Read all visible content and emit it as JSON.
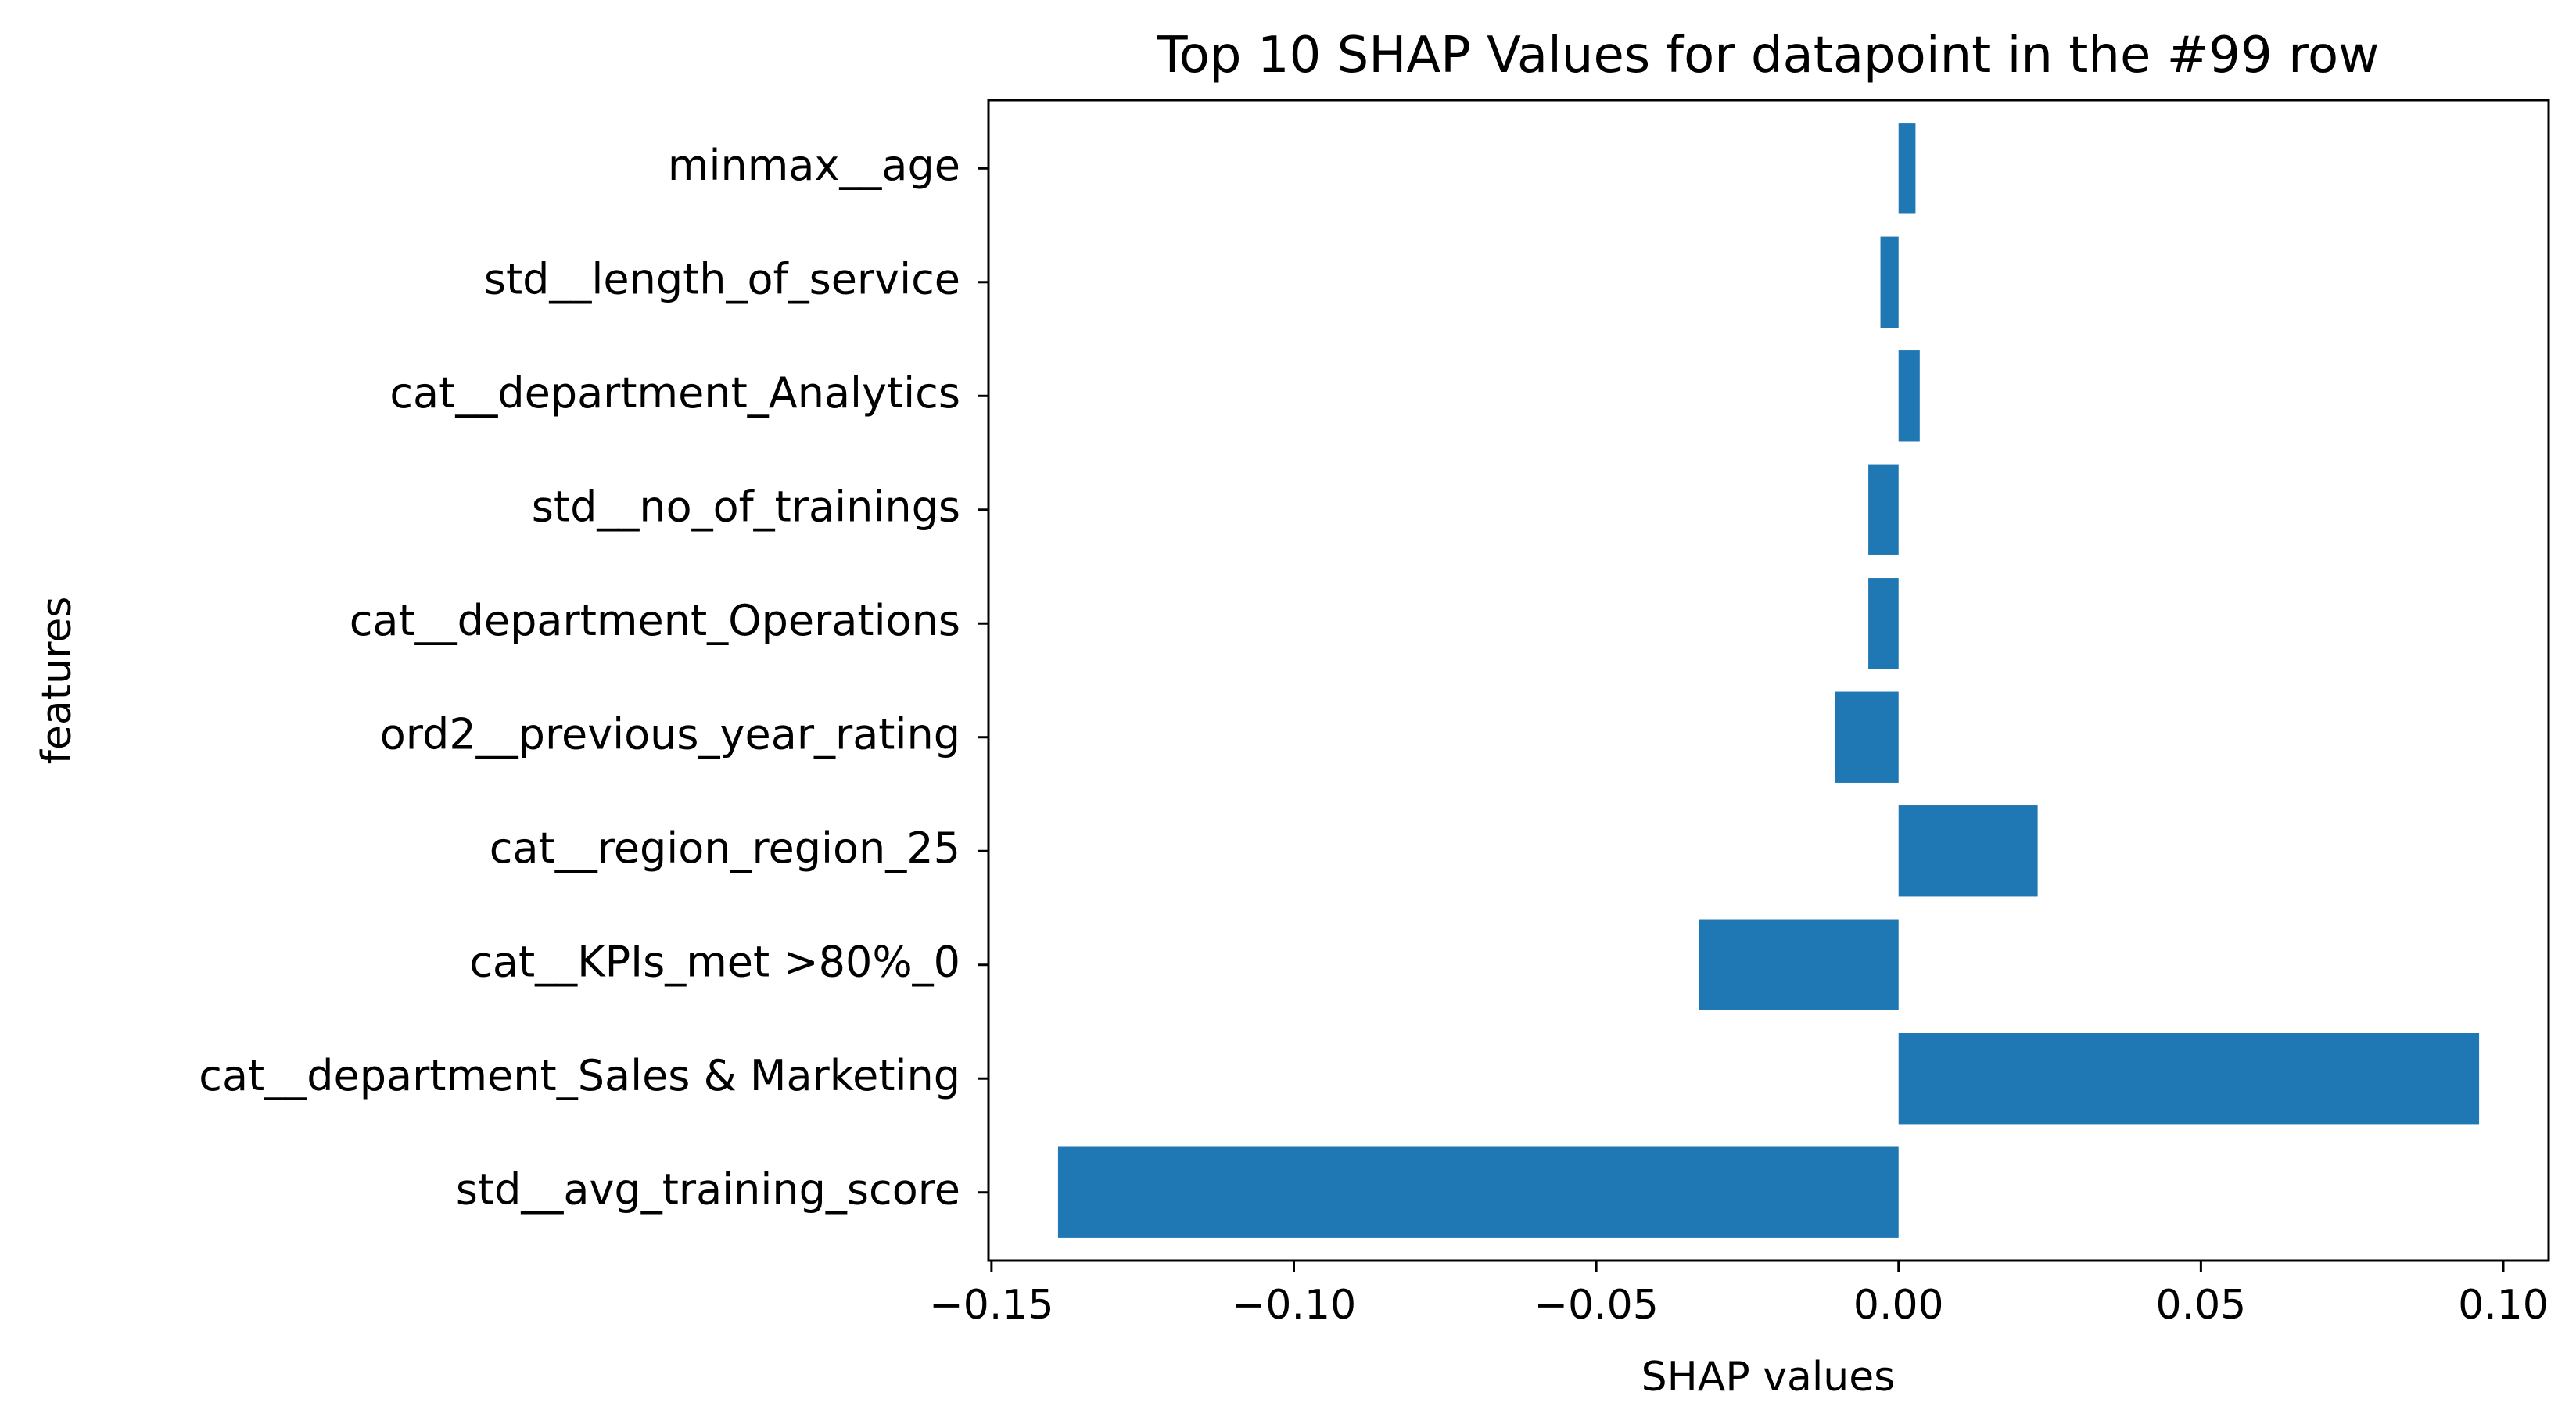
{
  "chart_data": {
    "type": "bar",
    "orientation": "horizontal",
    "title": "Top 10 SHAP Values for datapoint in the #99 row",
    "xlabel": "SHAP values",
    "ylabel": "features",
    "categories": [
      "std__avg_training_score",
      "cat__department_Sales & Marketing",
      "cat__KPIs_met >80%_0",
      "cat__region_region_25",
      "ord2__previous_year_rating",
      "cat__department_Operations",
      "std__no_of_trainings",
      "cat__department_Analytics",
      "std__length_of_service",
      "minmax__age"
    ],
    "values": [
      -0.139,
      0.096,
      -0.033,
      0.023,
      -0.0105,
      -0.005,
      -0.005,
      0.0035,
      -0.003,
      0.0028
    ],
    "xlim": [
      -0.1505,
      0.1075
    ],
    "xticks": [
      -0.15,
      -0.1,
      -0.05,
      0.0,
      0.05,
      0.1
    ],
    "xtick_labels": [
      "−0.15",
      "−0.10",
      "−0.05",
      "0.00",
      "0.05",
      "0.10"
    ],
    "bar_color": "#1f77b4",
    "grid": false,
    "legend": "none"
  }
}
